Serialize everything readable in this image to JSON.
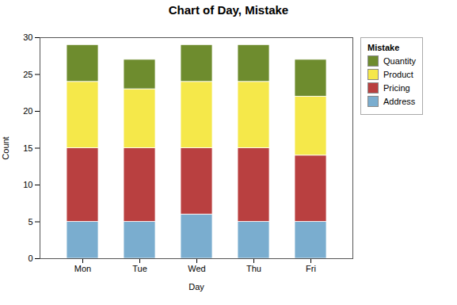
{
  "chart_data": {
    "type": "bar",
    "stacked": true,
    "title": "Chart of Day, Mistake",
    "xlabel": "Day",
    "ylabel": "Count",
    "categories": [
      "Mon",
      "Tue",
      "Wed",
      "Thu",
      "Fri"
    ],
    "series": [
      {
        "name": "Address",
        "color": "#7aadcf",
        "values": [
          5,
          5,
          6,
          5,
          5
        ]
      },
      {
        "name": "Pricing",
        "color": "#b94040",
        "values": [
          10,
          10,
          9,
          10,
          9
        ]
      },
      {
        "name": "Product",
        "color": "#f5e84a",
        "values": [
          9,
          8,
          9,
          9,
          8
        ]
      },
      {
        "name": "Quantity",
        "color": "#6e8c2e",
        "values": [
          5,
          4,
          5,
          5,
          5
        ]
      }
    ],
    "ylim": [
      0,
      30
    ],
    "yticks": [
      0,
      5,
      10,
      15,
      20,
      25,
      30
    ],
    "legend_title": "Mistake",
    "legend": "right",
    "grid": false
  }
}
